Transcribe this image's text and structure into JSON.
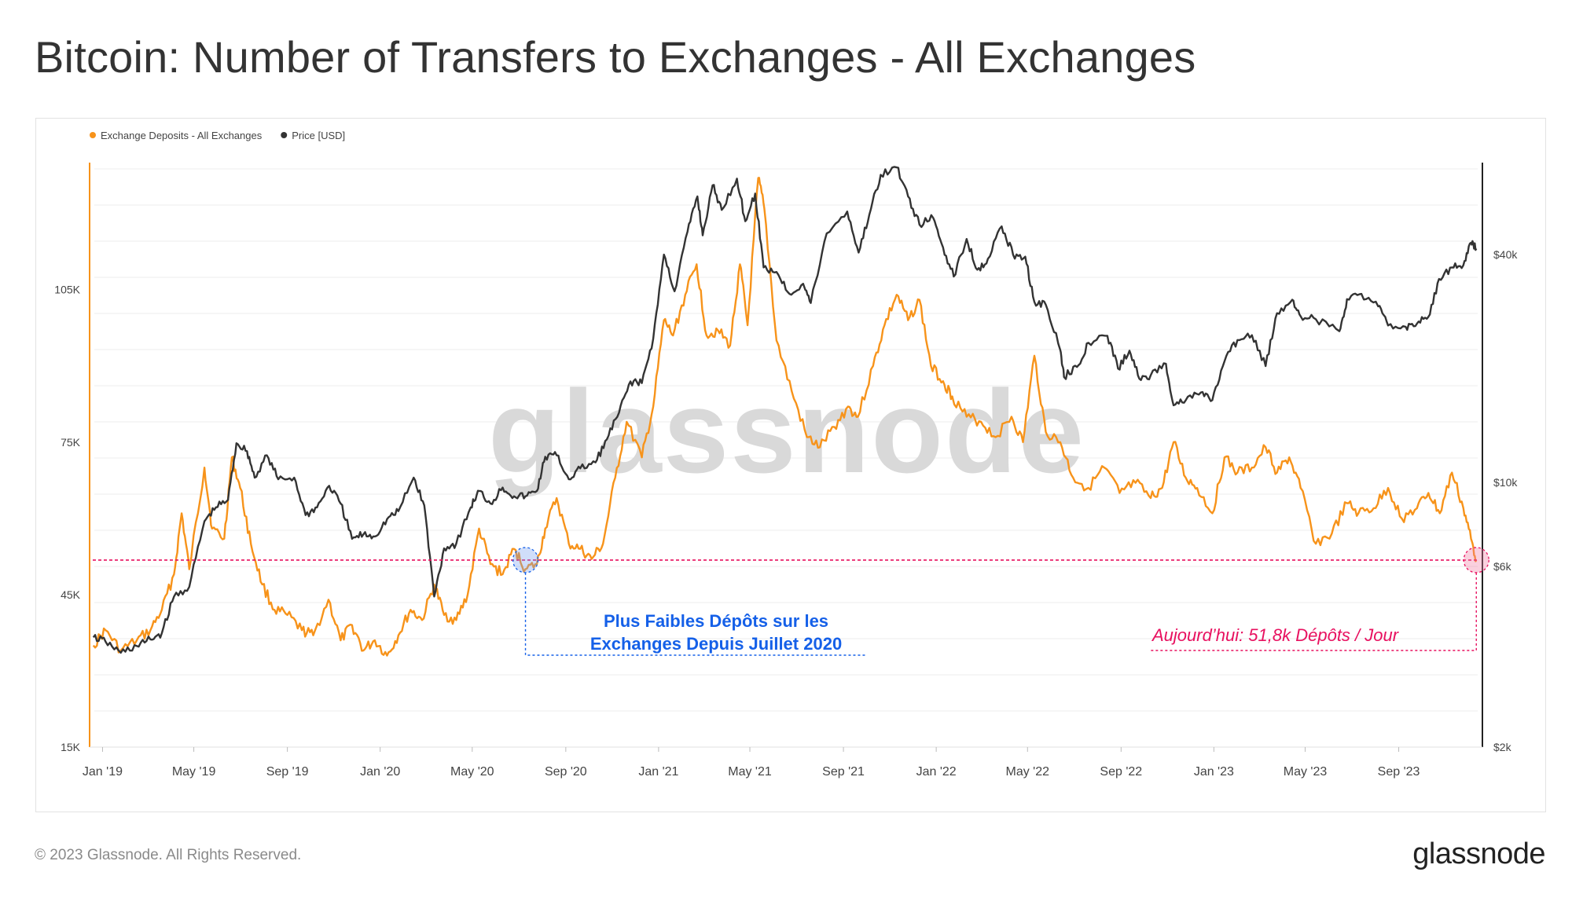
{
  "title": "Bitcoin: Number of Transfers to Exchanges - All Exchanges",
  "footer": {
    "copyright": "© 2023 Glassnode. All Rights Reserved.",
    "brand": "glassnode"
  },
  "watermark": "glassnode",
  "colors": {
    "deposits": "#f7931a",
    "price": "#333333",
    "blue_annotation": "#1560e8",
    "pink_annotation": "#e8105f",
    "grid": "#ececec"
  },
  "chart_data": {
    "type": "line",
    "title": "Bitcoin: Number of Transfers to Exchanges - All Exchanges",
    "legend": {
      "placement": "top-left",
      "items": [
        {
          "label": "Exchange Deposits - All Exchanges",
          "color": "#f7931a"
        },
        {
          "label": "Price [USD]",
          "color": "#333333"
        }
      ]
    },
    "x_axis": {
      "type": "date",
      "range": [
        "2018-12-15",
        "2023-12-20"
      ],
      "ticks": [
        {
          "date": "2019-01-01",
          "label": "Jan '19"
        },
        {
          "date": "2019-05-01",
          "label": "May '19"
        },
        {
          "date": "2019-09-01",
          "label": "Sep '19"
        },
        {
          "date": "2020-01-01",
          "label": "Jan '20"
        },
        {
          "date": "2020-05-01",
          "label": "May '20"
        },
        {
          "date": "2020-09-01",
          "label": "Sep '20"
        },
        {
          "date": "2021-01-01",
          "label": "Jan '21"
        },
        {
          "date": "2021-05-01",
          "label": "May '21"
        },
        {
          "date": "2021-09-01",
          "label": "Sep '21"
        },
        {
          "date": "2022-01-01",
          "label": "Jan '22"
        },
        {
          "date": "2022-05-01",
          "label": "May '22"
        },
        {
          "date": "2022-09-01",
          "label": "Sep '22"
        },
        {
          "date": "2023-01-01",
          "label": "Jan '23"
        },
        {
          "date": "2023-05-01",
          "label": "May '23"
        },
        {
          "date": "2023-09-01",
          "label": "Sep '23"
        }
      ]
    },
    "y_left": {
      "range": [
        15000,
        130000
      ],
      "ticks": [
        {
          "value": 15000,
          "label": "15K"
        },
        {
          "value": 45000,
          "label": "45K"
        },
        {
          "value": 75000,
          "label": "75K"
        },
        {
          "value": 105000,
          "label": "105K"
        }
      ]
    },
    "y_right": {
      "scale": "log",
      "range": [
        2000,
        70000
      ],
      "ticks": [
        {
          "value": 2000,
          "label": "$2k"
        },
        {
          "value": 6000,
          "label": "$6k"
        },
        {
          "value": 10000,
          "label": "$10k"
        },
        {
          "value": 40000,
          "label": "$40k"
        }
      ]
    },
    "grid": true,
    "series": [
      {
        "name": "Exchange Deposits - All Exchanges",
        "axis": "left",
        "color": "#f7931a",
        "points": [
          [
            "2018-12-20",
            35000
          ],
          [
            "2019-01-05",
            38000
          ],
          [
            "2019-01-25",
            34000
          ],
          [
            "2019-02-15",
            36000
          ],
          [
            "2019-03-05",
            38000
          ],
          [
            "2019-03-20",
            42000
          ],
          [
            "2019-04-05",
            49000
          ],
          [
            "2019-04-15",
            61000
          ],
          [
            "2019-04-25",
            50000
          ],
          [
            "2019-05-15",
            70000
          ],
          [
            "2019-05-25",
            58000
          ],
          [
            "2019-06-10",
            56000
          ],
          [
            "2019-06-20",
            72000
          ],
          [
            "2019-07-01",
            66000
          ],
          [
            "2019-07-15",
            55000
          ],
          [
            "2019-07-30",
            47000
          ],
          [
            "2019-08-15",
            42000
          ],
          [
            "2019-09-01",
            41000
          ],
          [
            "2019-09-20",
            38000
          ],
          [
            "2019-10-05",
            37000
          ],
          [
            "2019-10-25",
            44000
          ],
          [
            "2019-11-10",
            36000
          ],
          [
            "2019-11-25",
            39000
          ],
          [
            "2019-12-10",
            34000
          ],
          [
            "2019-12-25",
            36000
          ],
          [
            "2020-01-10",
            33000
          ],
          [
            "2020-01-25",
            37000
          ],
          [
            "2020-02-10",
            42000
          ],
          [
            "2020-02-25",
            40000
          ],
          [
            "2020-03-12",
            47000
          ],
          [
            "2020-03-25",
            41000
          ],
          [
            "2020-04-10",
            40000
          ],
          [
            "2020-04-25",
            45000
          ],
          [
            "2020-05-10",
            58000
          ],
          [
            "2020-05-25",
            51000
          ],
          [
            "2020-06-10",
            49000
          ],
          [
            "2020-06-25",
            54000
          ],
          [
            "2020-07-10",
            50000
          ],
          [
            "2020-07-25",
            51000
          ],
          [
            "2020-08-05",
            58000
          ],
          [
            "2020-08-20",
            64000
          ],
          [
            "2020-09-05",
            55000
          ],
          [
            "2020-09-20",
            54000
          ],
          [
            "2020-10-05",
            52000
          ],
          [
            "2020-10-20",
            55000
          ],
          [
            "2020-11-05",
            68000
          ],
          [
            "2020-11-20",
            79000
          ],
          [
            "2020-12-10",
            72000
          ],
          [
            "2020-12-25",
            82000
          ],
          [
            "2021-01-08",
            99000
          ],
          [
            "2021-01-20",
            96000
          ],
          [
            "2021-02-05",
            104000
          ],
          [
            "2021-02-20",
            110000
          ],
          [
            "2021-03-05",
            96000
          ],
          [
            "2021-03-20",
            97000
          ],
          [
            "2021-04-05",
            94000
          ],
          [
            "2021-04-18",
            110000
          ],
          [
            "2021-04-28",
            98000
          ],
          [
            "2021-05-12",
            127000
          ],
          [
            "2021-05-20",
            121000
          ],
          [
            "2021-06-05",
            95000
          ],
          [
            "2021-06-25",
            85000
          ],
          [
            "2021-07-15",
            76000
          ],
          [
            "2021-08-01",
            74000
          ],
          [
            "2021-08-20",
            78000
          ],
          [
            "2021-09-07",
            82000
          ],
          [
            "2021-09-20",
            80000
          ],
          [
            "2021-10-10",
            90000
          ],
          [
            "2021-10-25",
            98000
          ],
          [
            "2021-11-10",
            104000
          ],
          [
            "2021-11-25",
            99000
          ],
          [
            "2021-12-10",
            103000
          ],
          [
            "2021-12-25",
            90000
          ],
          [
            "2022-01-10",
            87000
          ],
          [
            "2022-01-22",
            84000
          ],
          [
            "2022-02-10",
            80000
          ],
          [
            "2022-03-01",
            79000
          ],
          [
            "2022-03-20",
            76000
          ],
          [
            "2022-04-10",
            80000
          ],
          [
            "2022-04-25",
            75000
          ],
          [
            "2022-05-10",
            92000
          ],
          [
            "2022-05-25",
            77000
          ],
          [
            "2022-06-13",
            75000
          ],
          [
            "2022-06-30",
            68000
          ],
          [
            "2022-07-20",
            66000
          ],
          [
            "2022-08-10",
            70000
          ],
          [
            "2022-08-30",
            65000
          ],
          [
            "2022-09-20",
            67000
          ],
          [
            "2022-10-10",
            64000
          ],
          [
            "2022-10-25",
            66000
          ],
          [
            "2022-11-09",
            75000
          ],
          [
            "2022-11-25",
            68000
          ],
          [
            "2022-12-10",
            66000
          ],
          [
            "2022-12-30",
            61000
          ],
          [
            "2023-01-15",
            72000
          ],
          [
            "2023-02-01",
            69000
          ],
          [
            "2023-02-20",
            70000
          ],
          [
            "2023-03-10",
            74000
          ],
          [
            "2023-03-25",
            69000
          ],
          [
            "2023-04-10",
            72000
          ],
          [
            "2023-04-25",
            66000
          ],
          [
            "2023-05-15",
            55000
          ],
          [
            "2023-06-05",
            57000
          ],
          [
            "2023-06-25",
            63000
          ],
          [
            "2023-07-10",
            61000
          ],
          [
            "2023-07-30",
            62000
          ],
          [
            "2023-08-18",
            66000
          ],
          [
            "2023-09-05",
            60000
          ],
          [
            "2023-09-25",
            62000
          ],
          [
            "2023-10-10",
            65000
          ],
          [
            "2023-10-25",
            61000
          ],
          [
            "2023-11-10",
            69000
          ],
          [
            "2023-11-25",
            62000
          ],
          [
            "2023-12-05",
            56000
          ],
          [
            "2023-12-12",
            51800
          ]
        ]
      },
      {
        "name": "Price [USD]",
        "axis": "right",
        "color": "#333333",
        "points": [
          [
            "2018-12-20",
            3900
          ],
          [
            "2019-01-05",
            3800
          ],
          [
            "2019-01-25",
            3550
          ],
          [
            "2019-02-15",
            3700
          ],
          [
            "2019-03-05",
            3850
          ],
          [
            "2019-03-20",
            4000
          ],
          [
            "2019-04-05",
            5000
          ],
          [
            "2019-04-25",
            5300
          ],
          [
            "2019-05-15",
            7900
          ],
          [
            "2019-05-30",
            8600
          ],
          [
            "2019-06-15",
            9000
          ],
          [
            "2019-06-26",
            12700
          ],
          [
            "2019-07-10",
            12100
          ],
          [
            "2019-07-20",
            10300
          ],
          [
            "2019-08-05",
            11800
          ],
          [
            "2019-08-20",
            10200
          ],
          [
            "2019-09-10",
            10300
          ],
          [
            "2019-09-25",
            8200
          ],
          [
            "2019-10-10",
            8600
          ],
          [
            "2019-10-26",
            9800
          ],
          [
            "2019-11-10",
            8800
          ],
          [
            "2019-11-25",
            7100
          ],
          [
            "2019-12-10",
            7300
          ],
          [
            "2019-12-25",
            7200
          ],
          [
            "2020-01-10",
            8000
          ],
          [
            "2020-01-25",
            8400
          ],
          [
            "2020-02-14",
            10300
          ],
          [
            "2020-02-28",
            8700
          ],
          [
            "2020-03-12",
            5000
          ],
          [
            "2020-03-25",
            6700
          ],
          [
            "2020-04-10",
            6900
          ],
          [
            "2020-04-29",
            8600
          ],
          [
            "2020-05-10",
            9500
          ],
          [
            "2020-05-25",
            8800
          ],
          [
            "2020-06-10",
            9700
          ],
          [
            "2020-06-25",
            9200
          ],
          [
            "2020-07-10",
            9200
          ],
          [
            "2020-07-25",
            9500
          ],
          [
            "2020-08-05",
            11700
          ],
          [
            "2020-08-20",
            11800
          ],
          [
            "2020-09-05",
            10200
          ],
          [
            "2020-09-20",
            10900
          ],
          [
            "2020-10-10",
            11300
          ],
          [
            "2020-10-25",
            13000
          ],
          [
            "2020-11-10",
            15300
          ],
          [
            "2020-11-25",
            18500
          ],
          [
            "2020-12-10",
            18300
          ],
          [
            "2020-12-25",
            24000
          ],
          [
            "2021-01-08",
            40000
          ],
          [
            "2021-01-22",
            32000
          ],
          [
            "2021-02-08",
            46000
          ],
          [
            "2021-02-21",
            57000
          ],
          [
            "2021-02-28",
            45000
          ],
          [
            "2021-03-13",
            61000
          ],
          [
            "2021-03-25",
            52500
          ],
          [
            "2021-04-14",
            63500
          ],
          [
            "2021-04-25",
            49000
          ],
          [
            "2021-05-08",
            58000
          ],
          [
            "2021-05-19",
            37000
          ],
          [
            "2021-06-05",
            36000
          ],
          [
            "2021-06-22",
            31500
          ],
          [
            "2021-07-10",
            33500
          ],
          [
            "2021-07-20",
            29800
          ],
          [
            "2021-08-10",
            45500
          ],
          [
            "2021-09-06",
            52000
          ],
          [
            "2021-09-21",
            40500
          ],
          [
            "2021-10-05",
            51000
          ],
          [
            "2021-10-20",
            65000
          ],
          [
            "2021-11-10",
            68000
          ],
          [
            "2021-11-25",
            57000
          ],
          [
            "2021-12-10",
            48000
          ],
          [
            "2021-12-28",
            50000
          ],
          [
            "2022-01-10",
            41800
          ],
          [
            "2022-01-24",
            35000
          ],
          [
            "2022-02-10",
            44000
          ],
          [
            "2022-02-24",
            36500
          ],
          [
            "2022-03-10",
            39000
          ],
          [
            "2022-03-28",
            47500
          ],
          [
            "2022-04-12",
            40000
          ],
          [
            "2022-04-28",
            39500
          ],
          [
            "2022-05-10",
            30000
          ],
          [
            "2022-05-25",
            29500
          ],
          [
            "2022-06-13",
            22400
          ],
          [
            "2022-06-18",
            19000
          ],
          [
            "2022-07-05",
            20200
          ],
          [
            "2022-07-20",
            23400
          ],
          [
            "2022-08-14",
            24400
          ],
          [
            "2022-08-28",
            20000
          ],
          [
            "2022-09-12",
            22300
          ],
          [
            "2022-09-25",
            18800
          ],
          [
            "2022-10-10",
            19200
          ],
          [
            "2022-10-30",
            20600
          ],
          [
            "2022-11-09",
            16000
          ],
          [
            "2022-11-25",
            16500
          ],
          [
            "2022-12-15",
            17300
          ],
          [
            "2022-12-30",
            16500
          ],
          [
            "2023-01-15",
            20900
          ],
          [
            "2023-02-01",
            23800
          ],
          [
            "2023-02-20",
            24500
          ],
          [
            "2023-03-10",
            20300
          ],
          [
            "2023-03-25",
            28000
          ],
          [
            "2023-04-14",
            30400
          ],
          [
            "2023-04-25",
            27500
          ],
          [
            "2023-05-15",
            27000
          ],
          [
            "2023-06-15",
            25100
          ],
          [
            "2023-06-25",
            30500
          ],
          [
            "2023-07-14",
            31500
          ],
          [
            "2023-08-05",
            29200
          ],
          [
            "2023-08-18",
            26000
          ],
          [
            "2023-09-10",
            25800
          ],
          [
            "2023-09-25",
            26300
          ],
          [
            "2023-10-10",
            27400
          ],
          [
            "2023-10-24",
            34500
          ],
          [
            "2023-11-10",
            37000
          ],
          [
            "2023-11-25",
            37500
          ],
          [
            "2023-12-05",
            43000
          ],
          [
            "2023-12-12",
            41500
          ]
        ]
      }
    ],
    "reference_line": {
      "value": 51800,
      "axis": "left",
      "color": "#e8105f",
      "style": "dashed"
    },
    "annotations": [
      {
        "text_lines": [
          "Plus Faibles Dépôts sur les",
          "Exchanges Depuis Juillet 2020"
        ],
        "date": "2020-07-10",
        "value": 51800,
        "color": "#1560e8",
        "style": "bold"
      },
      {
        "text": "Aujourd’hui: 51,8k Dépôts / Jour",
        "date": "2023-12-12",
        "value": 51800,
        "color": "#e8105f",
        "style": "italic"
      }
    ]
  }
}
